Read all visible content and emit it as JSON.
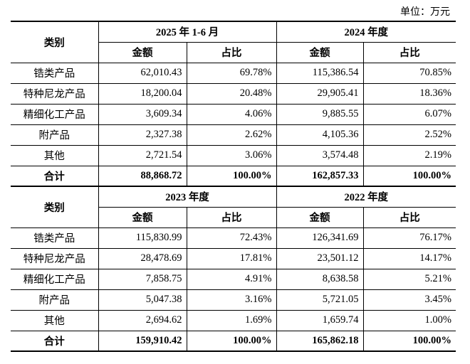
{
  "unit": "单位：万元",
  "blocks": [
    {
      "category_header": "类别",
      "periods": [
        "2025 年 1-6 月",
        "2024 年度"
      ],
      "column_headers": [
        "金额",
        "占比",
        "金额",
        "占比"
      ],
      "rows": [
        [
          "锆类产品",
          "62,010.43",
          "69.78%",
          "115,386.54",
          "70.85%"
        ],
        [
          "特种尼龙产品",
          "18,200.04",
          "20.48%",
          "29,905.41",
          "18.36%"
        ],
        [
          "精细化工产品",
          "3,609.34",
          "4.06%",
          "9,885.55",
          "6.07%"
        ],
        [
          "附产品",
          "2,327.38",
          "2.62%",
          "4,105.36",
          "2.52%"
        ],
        [
          "其他",
          "2,721.54",
          "3.06%",
          "3,574.48",
          "2.19%"
        ],
        [
          "合计",
          "88,868.72",
          "100.00%",
          "162,857.33",
          "100.00%"
        ]
      ]
    },
    {
      "category_header": "类别",
      "periods": [
        "2023 年度",
        "2022 年度"
      ],
      "column_headers": [
        "金额",
        "占比",
        "金额",
        "占比"
      ],
      "rows": [
        [
          "锆类产品",
          "115,830.99",
          "72.43%",
          "126,341.69",
          "76.17%"
        ],
        [
          "特种尼龙产品",
          "28,478.69",
          "17.81%",
          "23,501.12",
          "14.17%"
        ],
        [
          "精细化工产品",
          "7,858.75",
          "4.91%",
          "8,638.58",
          "5.21%"
        ],
        [
          "附产品",
          "5,047.38",
          "3.16%",
          "5,721.05",
          "3.45%"
        ],
        [
          "其他",
          "2,694.62",
          "1.69%",
          "1,659.74",
          "1.00%"
        ],
        [
          "合计",
          "159,910.42",
          "100.00%",
          "165,862.18",
          "100.00%"
        ]
      ]
    }
  ]
}
